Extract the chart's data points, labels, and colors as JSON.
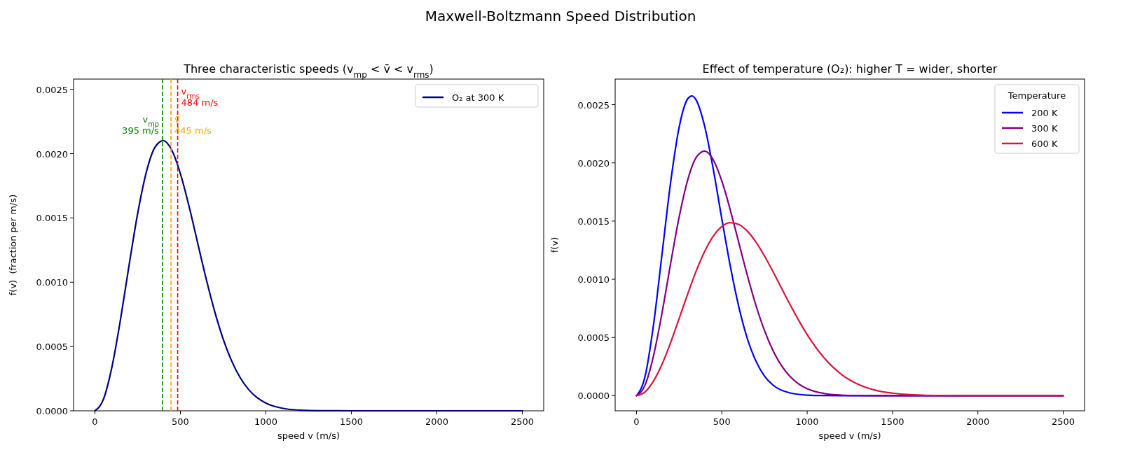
{
  "chart_data": [
    {
      "type": "line",
      "title": "Three characteristic speeds (v$_{mp}$ < v̄ < v$_{rms}$)",
      "xlabel": "speed v (m/s)",
      "ylabel": "f(v)  (fraction per m/s)",
      "annotations": [
        "Maxwell-Boltzmann Speed Distribution"
      ],
      "xlim": [
        -125,
        2625
      ],
      "xticks": [
        0,
        500,
        1000,
        1500,
        2000,
        2500
      ],
      "ylim": [
        0,
        0.00258
      ],
      "yticks": [
        {
          "value": 0,
          "label": "0.0000"
        },
        {
          "value": 0.0005,
          "label": "0.0005"
        },
        {
          "value": 0.001,
          "label": "0.0010"
        },
        {
          "value": 0.0015,
          "label": "0.0015"
        },
        {
          "value": 0.002,
          "label": "0.0020"
        },
        {
          "value": 0.0025,
          "label": "0.0025"
        }
      ],
      "legend": "top right",
      "line_style": "solid",
      "marker": "none",
      "series": [
        {
          "name": "O₂ at 300 K",
          "color": "#000080",
          "x": [
            0,
            50,
            100,
            150,
            200,
            250,
            300,
            350,
            400,
            450,
            500,
            550,
            600,
            650,
            700,
            750,
            800,
            850,
            900,
            950,
            1000,
            1100,
            1200,
            1300,
            1500,
            2500
          ],
          "values": [
            0,
            9e-05,
            0.000344,
            0.000714,
            0.001135,
            0.001535,
            0.001853,
            0.002047,
            0.002102,
            0.002026,
            0.001844,
            0.001593,
            0.001311,
            0.00103,
            0.000775,
            0.000559,
            0.000387,
            0.000257,
            0.000164,
            0.000101,
            6e-05,
            1.9e-05,
            5e-06,
            1e-06,
            0,
            0
          ]
        }
      ],
      "ref_lines": [
        {
          "axis": "x",
          "value": 395,
          "label": "v$_{mp}$\n395 m/s",
          "color": "#008000",
          "line_style": "dashed"
        },
        {
          "axis": "x",
          "value": 445,
          "label": "v̄\n445 m/s",
          "color": "#ffa500",
          "line_style": "dashed"
        },
        {
          "axis": "x",
          "value": 484,
          "label": "v$_{rms}$\n484 m/s",
          "color": "#ff0000",
          "line_style": "dashed"
        }
      ]
    },
    {
      "type": "line",
      "title": "Effect of temperature (O₂): higher T = wider, shorter",
      "xlabel": "speed v (m/s)",
      "ylabel": "f(v)",
      "legend_title": "Temperature",
      "xlim": [
        -125,
        2625
      ],
      "xticks": [
        0,
        500,
        1000,
        1500,
        2000,
        2500
      ],
      "ylim": [
        -0.00013,
        0.00272
      ],
      "yticks": [
        {
          "value": 0,
          "label": "0.0000"
        },
        {
          "value": 0.0005,
          "label": "0.0005"
        },
        {
          "value": 0.001,
          "label": "0.0010"
        },
        {
          "value": 0.0015,
          "label": "0.0015"
        },
        {
          "value": 0.002,
          "label": "0.0020"
        },
        {
          "value": 0.0025,
          "label": "0.0025"
        }
      ],
      "legend": "top right",
      "line_style": "solid",
      "marker": "none",
      "series": [
        {
          "name": "200 K",
          "color": "#0000ff",
          "x": [
            0,
            50,
            100,
            150,
            200,
            250,
            300,
            325,
            350,
            400,
            450,
            500,
            550,
            600,
            650,
            700,
            750,
            800,
            900,
            1000,
            1100,
            1200,
            2500
          ],
          "values": [
            0,
            0.000164,
            0.000612,
            0.00122,
            0.001833,
            0.002307,
            0.00255,
            0.002575,
            0.002539,
            0.002311,
            0.001944,
            0.001519,
            0.00111,
            0.00076,
            0.000488,
            0.000296,
            0.000169,
            9.1e-05,
            2.3e-05,
            5e-06,
            1e-06,
            0,
            0
          ]
        },
        {
          "name": "300 K",
          "color": "#800080",
          "x": [
            0,
            50,
            100,
            150,
            200,
            250,
            300,
            350,
            400,
            450,
            500,
            550,
            600,
            650,
            700,
            750,
            800,
            850,
            900,
            950,
            1000,
            1100,
            1200,
            1300,
            1500,
            2500
          ],
          "values": [
            0,
            9e-05,
            0.000344,
            0.000714,
            0.001135,
            0.001535,
            0.001853,
            0.002047,
            0.002102,
            0.002026,
            0.001844,
            0.001593,
            0.001311,
            0.00103,
            0.000775,
            0.000559,
            0.000387,
            0.000257,
            0.000164,
            0.000101,
            6e-05,
            1.9e-05,
            5e-06,
            1e-06,
            0,
            0
          ]
        },
        {
          "name": "600 K",
          "color": "#dc143c",
          "x": [
            0,
            50,
            100,
            150,
            200,
            250,
            300,
            350,
            400,
            450,
            500,
            550,
            600,
            650,
            700,
            750,
            800,
            850,
            900,
            950,
            1000,
            1100,
            1200,
            1300,
            1400,
            1500,
            1600,
            1800,
            2000,
            2500
          ],
          "values": [
            0,
            3.2e-05,
            0.000126,
            0.000271,
            0.000456,
            0.000663,
            0.000874,
            0.001072,
            0.001241,
            0.001371,
            0.001454,
            0.001487,
            0.001471,
            0.001413,
            0.00132,
            0.0012,
            0.001065,
            0.000923,
            0.000782,
            0.000648,
            0.000525,
            0.000324,
            0.000184,
            9.7e-05,
            4.7e-05,
            2.2e-05,
            9e-06,
            1e-06,
            0,
            0
          ]
        }
      ]
    }
  ]
}
